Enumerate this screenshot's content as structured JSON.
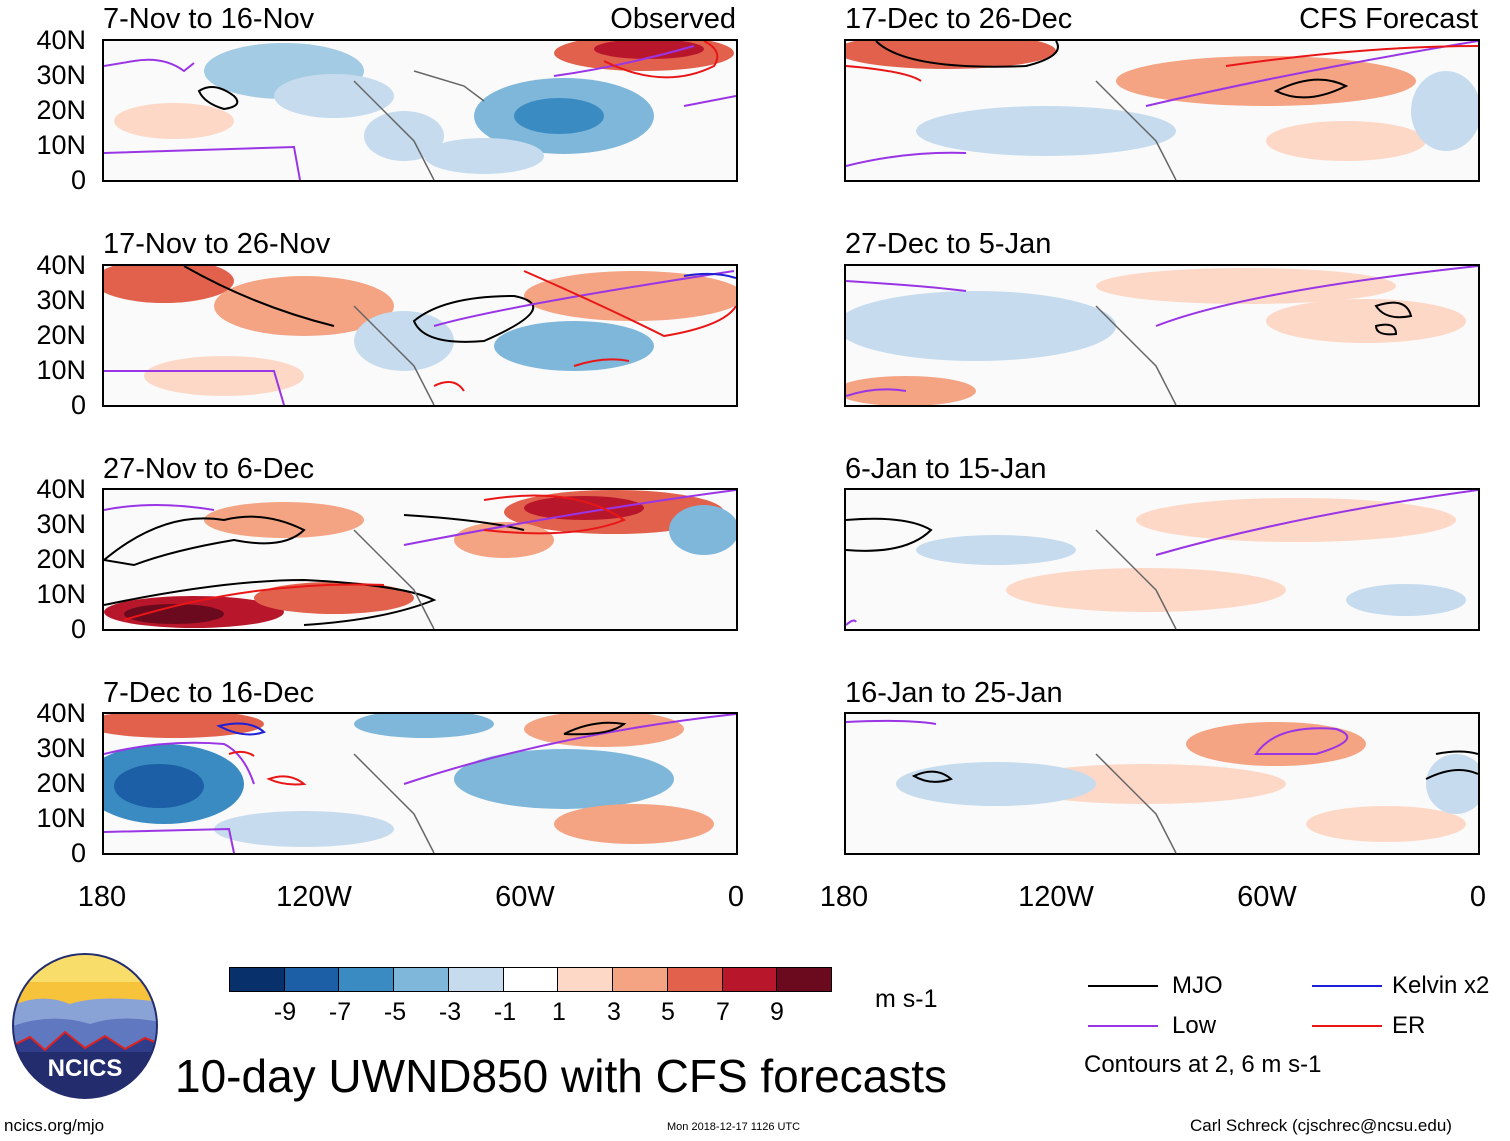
{
  "panels": {
    "observed": [
      {
        "period": "7-Nov to 16-Nov",
        "tag": "Observed"
      },
      {
        "period": "17-Nov to 26-Nov"
      },
      {
        "period": "27-Nov to 6-Dec"
      },
      {
        "period": "7-Dec to 16-Dec"
      }
    ],
    "forecast": [
      {
        "period": "17-Dec to 26-Dec",
        "tag": "CFS Forecast"
      },
      {
        "period": "27-Dec to 5-Jan"
      },
      {
        "period": "6-Jan to 15-Jan"
      },
      {
        "period": "16-Jan to 25-Jan"
      }
    ]
  },
  "axes": {
    "lat_labels": [
      "40N",
      "30N",
      "20N",
      "10N",
      "0"
    ],
    "lon_labels": [
      "180",
      "120W",
      "60W",
      "0"
    ]
  },
  "colorbar": {
    "labels": [
      "-9",
      "-7",
      "-5",
      "-3",
      "-1",
      "1",
      "3",
      "5",
      "7",
      "9"
    ],
    "units": "m s-1",
    "colors": [
      "#08306b",
      "#1c5fa6",
      "#3b8bc3",
      "#7fb7da",
      "#c6dcee",
      "#ffffff",
      "#fdd8c6",
      "#f4a383",
      "#e2614d",
      "#b8162a",
      "#6b0a1e"
    ]
  },
  "legend": {
    "mjo": {
      "label": "MJO",
      "color": "#000000"
    },
    "kelvin": {
      "label": "Kelvin x2",
      "color": "#1f1fd6"
    },
    "low": {
      "label": "Low",
      "color": "#9a35e6"
    },
    "er": {
      "label": "ER",
      "color": "#e81616"
    },
    "contour_note": "Contours at 2, 6 m s-1"
  },
  "title": "10-day UWND850 with CFS forecasts",
  "logo_text": "NCICS",
  "footer": {
    "url": "ncics.org/mjo",
    "timestamp": "Mon 2018-12-17 1126 UTC",
    "author": "Carl Schreck (cjschrec@ncsu.edu)"
  }
}
